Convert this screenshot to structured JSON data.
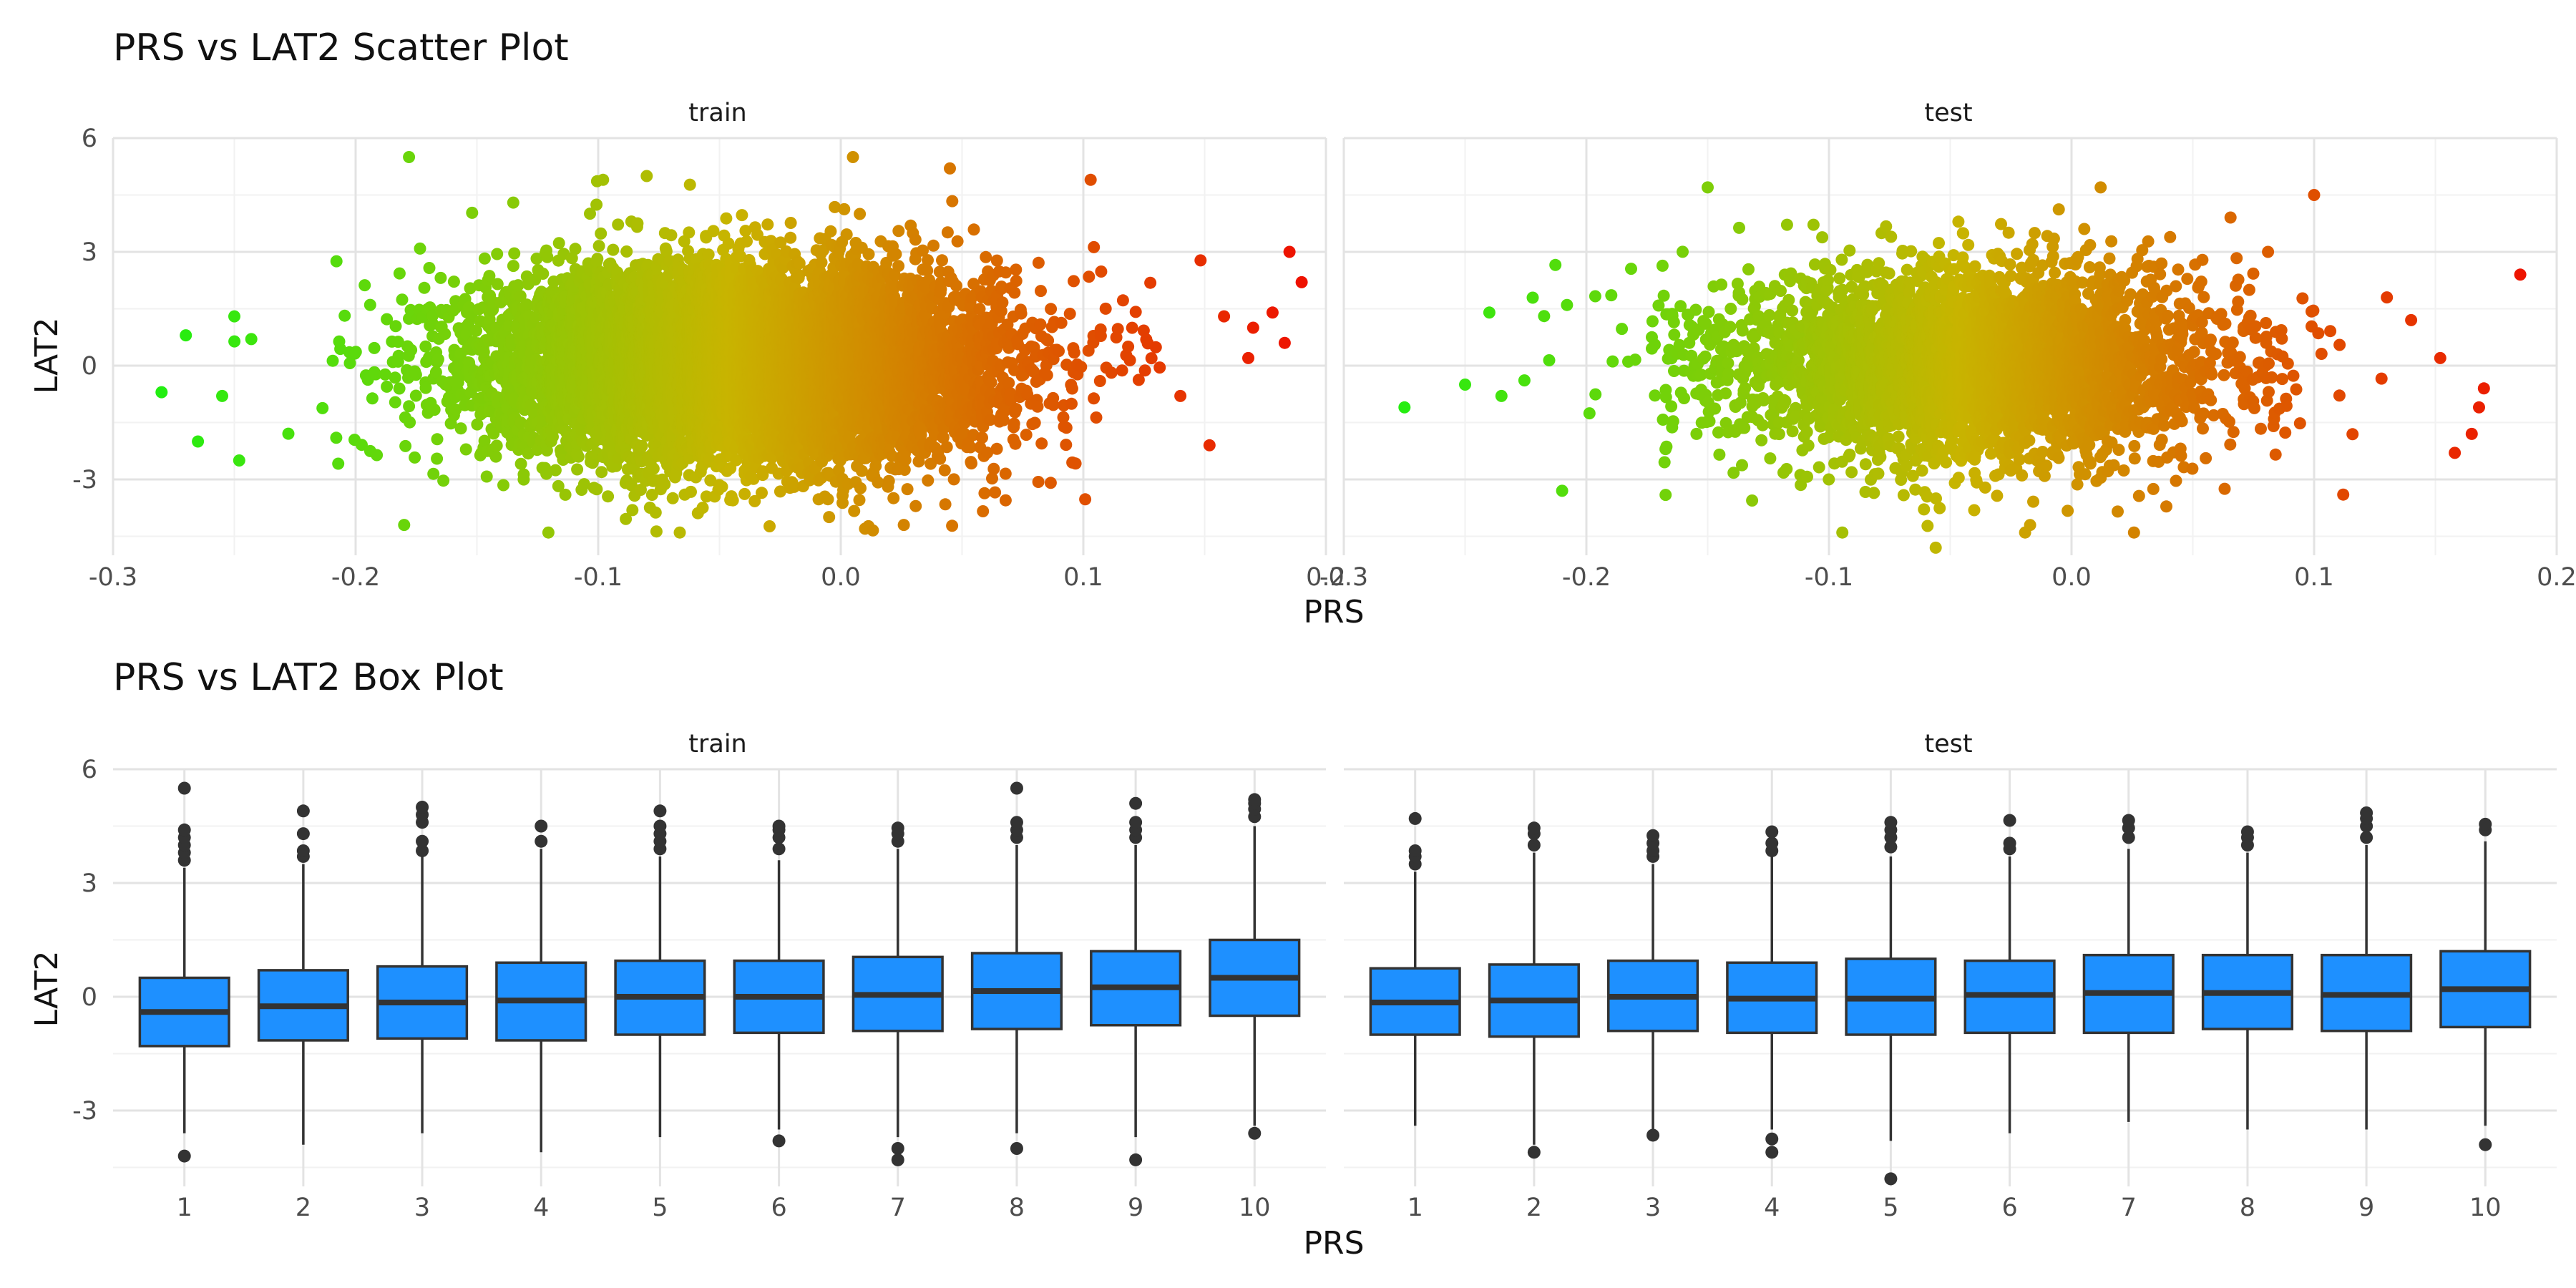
{
  "colors": {
    "low": "#22ee11",
    "mid": "#c8b400",
    "high": "#ee1100",
    "box_fill": "#1e90ff",
    "box_line": "#333333"
  },
  "chart_data": [
    {
      "type": "scatter",
      "title": "PRS vs LAT2 Scatter Plot",
      "xlabel": "PRS",
      "ylabel": "LAT2",
      "grid": true,
      "legend": "none",
      "color_by": "x",
      "panels": [
        {
          "name": "train",
          "xlim": [
            -0.3,
            0.2
          ],
          "ylim": [
            -5,
            6
          ],
          "x_ticks": [
            "-0.3",
            "-0.2",
            "-0.1",
            "0.0",
            "0.1",
            "0.2"
          ],
          "y_ticks": [
            "-3",
            "0",
            "3",
            "6"
          ],
          "x_center": -0.04,
          "x_sd": 0.052,
          "y_mean": 0.05,
          "y_sd": 1.25,
          "n": 9000,
          "points": [
            [
              -0.28,
              -0.7
            ],
            [
              -0.27,
              0.8
            ],
            [
              -0.265,
              -2.0
            ],
            [
              -0.255,
              -0.8
            ],
            [
              -0.25,
              1.3
            ],
            [
              -0.248,
              -2.5
            ],
            [
              -0.243,
              0.7
            ],
            [
              -0.178,
              5.5
            ],
            [
              -0.18,
              -4.2
            ],
            [
              -0.135,
              4.3
            ],
            [
              -0.098,
              4.9
            ],
            [
              -0.08,
              5.0
            ],
            [
              0.01,
              -4.3
            ],
            [
              0.005,
              5.5
            ],
            [
              0.045,
              5.2
            ],
            [
              0.026,
              -4.2
            ],
            [
              0.103,
              4.9
            ],
            [
              0.17,
              1.0
            ],
            [
              0.168,
              0.2
            ],
            [
              0.158,
              1.3
            ],
            [
              0.183,
              0.6
            ],
            [
              0.185,
              3.0
            ],
            [
              0.19,
              2.2
            ],
            [
              0.178,
              1.4
            ],
            [
              0.152,
              -2.1
            ],
            [
              0.14,
              -0.8
            ]
          ]
        },
        {
          "name": "test",
          "xlim": [
            -0.3,
            0.2
          ],
          "ylim": [
            -5,
            6
          ],
          "x_ticks": [
            "-0.3",
            "-0.2",
            "-0.1",
            "0.0",
            "0.1",
            "0.2"
          ],
          "y_ticks": [
            "-3",
            "0",
            "3",
            "6"
          ],
          "x_center": -0.04,
          "x_sd": 0.05,
          "y_mean": 0.05,
          "y_sd": 1.25,
          "n": 4000,
          "points": [
            [
              -0.275,
              -1.1
            ],
            [
              -0.25,
              -0.5
            ],
            [
              -0.24,
              1.4
            ],
            [
              -0.235,
              -0.8
            ],
            [
              -0.21,
              -3.3
            ],
            [
              -0.208,
              1.6
            ],
            [
              -0.15,
              4.7
            ],
            [
              -0.056,
              -4.8
            ],
            [
              0.012,
              4.7
            ],
            [
              0.1,
              4.5
            ],
            [
              0.185,
              2.4
            ],
            [
              0.17,
              -0.6
            ],
            [
              0.168,
              -1.1
            ],
            [
              0.165,
              -1.8
            ],
            [
              0.158,
              -2.3
            ],
            [
              0.152,
              0.2
            ],
            [
              0.14,
              1.2
            ],
            [
              0.13,
              1.8
            ],
            [
              0.112,
              -3.4
            ]
          ]
        }
      ]
    },
    {
      "type": "box",
      "title": "PRS vs LAT2 Box Plot",
      "xlabel": "PRS",
      "ylabel": "LAT2",
      "grid": true,
      "legend": "none",
      "categories": [
        "1",
        "2",
        "3",
        "4",
        "5",
        "6",
        "7",
        "8",
        "9",
        "10"
      ],
      "panels": [
        {
          "name": "train",
          "ylim": [
            -5,
            6
          ],
          "y_ticks": [
            "-3",
            "0",
            "3",
            "6"
          ],
          "boxes": [
            {
              "q1": -1.3,
              "median": -0.4,
              "q3": 0.5,
              "lower": -3.6,
              "upper": 3.4,
              "outliers": [
                3.6,
                3.8,
                4.0,
                4.2,
                4.4,
                5.5,
                -4.2
              ]
            },
            {
              "q1": -1.15,
              "median": -0.25,
              "q3": 0.7,
              "lower": -3.9,
              "upper": 3.5,
              "outliers": [
                3.7,
                3.85,
                4.3,
                4.9
              ]
            },
            {
              "q1": -1.1,
              "median": -0.15,
              "q3": 0.8,
              "lower": -3.6,
              "upper": 3.7,
              "outliers": [
                3.85,
                4.1,
                4.6,
                4.8,
                5.0
              ]
            },
            {
              "q1": -1.15,
              "median": -0.1,
              "q3": 0.9,
              "lower": -4.1,
              "upper": 3.9,
              "outliers": [
                4.1,
                4.5
              ]
            },
            {
              "q1": -1.0,
              "median": 0.0,
              "q3": 0.95,
              "lower": -3.7,
              "upper": 3.7,
              "outliers": [
                3.9,
                4.1,
                4.3,
                4.5,
                4.9
              ]
            },
            {
              "q1": -0.95,
              "median": 0.0,
              "q3": 0.95,
              "lower": -3.5,
              "upper": 3.6,
              "outliers": [
                3.9,
                4.2,
                4.4,
                4.5,
                -3.8
              ]
            },
            {
              "q1": -0.9,
              "median": 0.05,
              "q3": 1.05,
              "lower": -3.7,
              "upper": 3.9,
              "outliers": [
                4.1,
                4.3,
                4.45,
                -4.0,
                -4.3
              ]
            },
            {
              "q1": -0.85,
              "median": 0.15,
              "q3": 1.15,
              "lower": -3.6,
              "upper": 4.0,
              "outliers": [
                4.2,
                4.4,
                4.6,
                5.5,
                -4.0
              ]
            },
            {
              "q1": -0.75,
              "median": 0.25,
              "q3": 1.2,
              "lower": -3.7,
              "upper": 4.0,
              "outliers": [
                4.2,
                4.4,
                4.6,
                5.1,
                -4.3
              ]
            },
            {
              "q1": -0.5,
              "median": 0.5,
              "q3": 1.5,
              "lower": -3.4,
              "upper": 4.5,
              "outliers": [
                4.75,
                4.95,
                5.1,
                5.2,
                -3.6
              ]
            }
          ]
        },
        {
          "name": "test",
          "ylim": [
            -5,
            6
          ],
          "y_ticks": [
            "-3",
            "0",
            "3",
            "6"
          ],
          "boxes": [
            {
              "q1": -1.0,
              "median": -0.15,
              "q3": 0.75,
              "lower": -3.4,
              "upper": 3.3,
              "outliers": [
                3.5,
                3.7,
                3.85,
                4.7
              ]
            },
            {
              "q1": -1.05,
              "median": -0.1,
              "q3": 0.85,
              "lower": -3.9,
              "upper": 3.8,
              "outliers": [
                4.0,
                4.3,
                4.45,
                -4.1
              ]
            },
            {
              "q1": -0.9,
              "median": 0.0,
              "q3": 0.95,
              "lower": -3.5,
              "upper": 3.5,
              "outliers": [
                3.7,
                3.85,
                4.05,
                4.25,
                -3.65
              ]
            },
            {
              "q1": -0.95,
              "median": -0.05,
              "q3": 0.9,
              "lower": -3.5,
              "upper": 3.7,
              "outliers": [
                3.85,
                4.05,
                4.35,
                -3.75,
                -4.1
              ]
            },
            {
              "q1": -1.0,
              "median": -0.05,
              "q3": 1.0,
              "lower": -3.8,
              "upper": 3.7,
              "outliers": [
                3.95,
                4.2,
                4.4,
                4.6,
                -4.8
              ]
            },
            {
              "q1": -0.95,
              "median": 0.05,
              "q3": 0.95,
              "lower": -3.6,
              "upper": 3.7,
              "outliers": [
                3.9,
                4.05,
                4.65
              ]
            },
            {
              "q1": -0.95,
              "median": 0.1,
              "q3": 1.1,
              "lower": -3.3,
              "upper": 3.9,
              "outliers": [
                4.2,
                4.45,
                4.65
              ]
            },
            {
              "q1": -0.85,
              "median": 0.1,
              "q3": 1.1,
              "lower": -3.5,
              "upper": 3.8,
              "outliers": [
                4.0,
                4.2,
                4.35
              ]
            },
            {
              "q1": -0.9,
              "median": 0.05,
              "q3": 1.1,
              "lower": -3.5,
              "upper": 4.0,
              "outliers": [
                4.2,
                4.5,
                4.7,
                4.85
              ]
            },
            {
              "q1": -0.8,
              "median": 0.2,
              "q3": 1.2,
              "lower": -3.4,
              "upper": 4.1,
              "outliers": [
                4.4,
                4.55,
                -3.9
              ]
            }
          ]
        }
      ]
    }
  ]
}
